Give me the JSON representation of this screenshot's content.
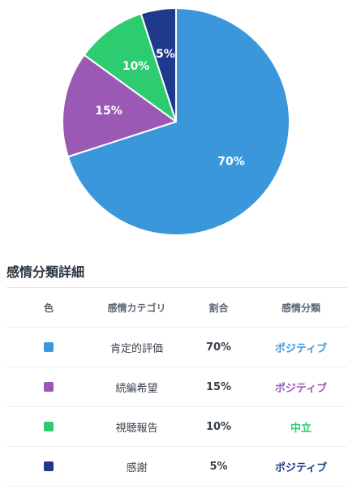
{
  "chart_data": {
    "type": "pie",
    "slices": [
      {
        "label": "肯定的評価",
        "value": 70,
        "display": "70%",
        "color": "#3b97dc"
      },
      {
        "label": "続編希望",
        "value": 15,
        "display": "15%",
        "color": "#9b59b6"
      },
      {
        "label": "視聴報告",
        "value": 10,
        "display": "10%",
        "color": "#2ecc71"
      },
      {
        "label": "感謝",
        "value": 5,
        "display": "5%",
        "color": "#1f3a8c"
      }
    ],
    "start_angle_deg": 0,
    "direction": "clockwise"
  },
  "table": {
    "title": "感情分類詳細",
    "headers": {
      "color": "色",
      "category": "感情カテゴリ",
      "ratio": "割合",
      "classification": "感情分類"
    },
    "rows": [
      {
        "color": "#3b97dc",
        "category": "肯定的評価",
        "ratio": "70%",
        "classification": "ポジティブ",
        "class_color": "#3b97dc"
      },
      {
        "color": "#9b59b6",
        "category": "続編希望",
        "ratio": "15%",
        "classification": "ポジティブ",
        "class_color": "#9b59b6"
      },
      {
        "color": "#2ecc71",
        "category": "視聴報告",
        "ratio": "10%",
        "classification": "中立",
        "class_color": "#2ecc71"
      },
      {
        "color": "#1f3a8c",
        "category": "感謝",
        "ratio": "5%",
        "classification": "ポジティブ",
        "class_color": "#1f3a8c"
      }
    ]
  }
}
